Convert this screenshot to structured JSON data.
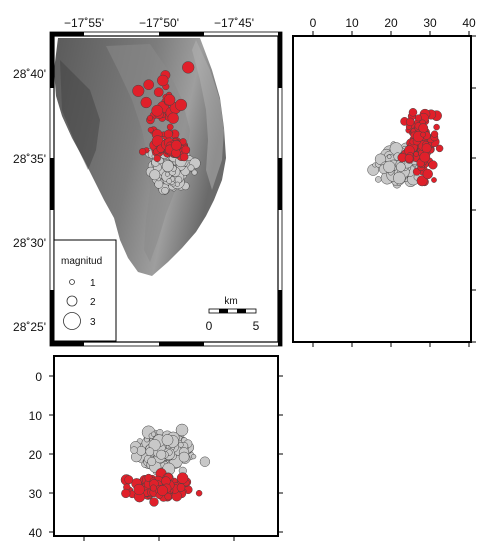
{
  "map": {
    "lon_ticks": [
      "−17˚55'",
      "−17˚50'",
      "−17˚45'"
    ],
    "lat_ticks": [
      "28˚40'",
      "28˚35'",
      "28˚30'",
      "28˚25'"
    ],
    "lon_range_deg": [
      -17.983,
      -17.7
    ],
    "lat_range_deg": [
      28.4,
      28.717
    ]
  },
  "legend": {
    "title": "magnitud",
    "items": [
      {
        "label": "1",
        "mag": 1
      },
      {
        "label": "2",
        "mag": 2
      },
      {
        "label": "3",
        "mag": 3
      }
    ]
  },
  "scalebar": {
    "unit": "km",
    "ticks": [
      "0",
      "5"
    ],
    "length_km": 5
  },
  "depth_east": {
    "ticks": [
      "0",
      "10",
      "20",
      "30",
      "40"
    ],
    "range_km": [
      0,
      40
    ]
  },
  "depth_south": {
    "ticks": [
      "0",
      "10",
      "20",
      "30",
      "40"
    ],
    "range_km": [
      0,
      40
    ]
  },
  "colors": {
    "hist_fill": "#c8c8c8",
    "recent_fill": "#e0202a",
    "relief_dark": "#4a4a4a",
    "relief_light": "#9a9a9a",
    "frame": "#000000"
  }
}
